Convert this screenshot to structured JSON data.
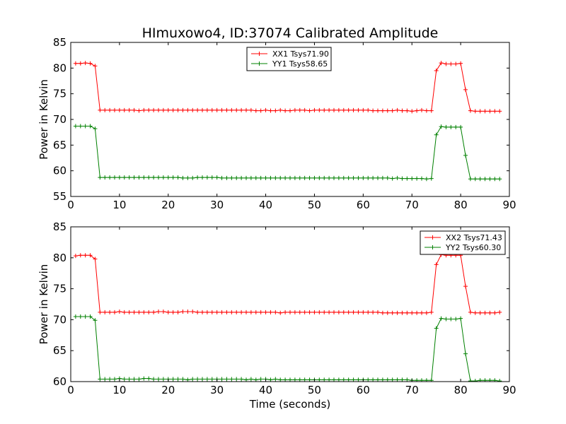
{
  "title": "HImuxowo4, ID:37074 Calibrated Amplitude",
  "chart_data": [
    {
      "type": "line",
      "xlabel": "",
      "ylabel": "Power in Kelvin",
      "xlim": [
        0,
        90
      ],
      "ylim": [
        55,
        85
      ],
      "xticks": [
        "0",
        "10",
        "20",
        "30",
        "40",
        "50",
        "60",
        "70",
        "80",
        "90"
      ],
      "yticks": [
        "55",
        "60",
        "65",
        "70",
        "75",
        "80",
        "85"
      ],
      "grid": false,
      "legend_position": "upper-center",
      "series": [
        {
          "name": "XX1 Tsys71.90",
          "color": "#ff0000",
          "x": [
            1,
            2,
            3,
            4,
            5,
            6,
            7,
            8,
            9,
            10,
            11,
            12,
            13,
            14,
            15,
            16,
            17,
            18,
            19,
            20,
            21,
            22,
            23,
            24,
            25,
            26,
            27,
            28,
            29,
            30,
            31,
            32,
            33,
            34,
            35,
            36,
            37,
            38,
            39,
            40,
            41,
            42,
            43,
            44,
            45,
            46,
            47,
            48,
            49,
            50,
            51,
            52,
            53,
            54,
            55,
            56,
            57,
            58,
            59,
            60,
            61,
            62,
            63,
            64,
            65,
            66,
            67,
            68,
            69,
            70,
            71,
            72,
            73,
            74,
            75,
            76,
            77,
            78,
            79,
            80,
            81,
            82,
            83,
            84,
            85,
            86,
            87,
            88
          ],
          "y": [
            80.9,
            80.9,
            81.0,
            80.9,
            80.4,
            71.8,
            71.8,
            71.8,
            71.8,
            71.8,
            71.8,
            71.8,
            71.8,
            71.7,
            71.8,
            71.8,
            71.8,
            71.8,
            71.8,
            71.8,
            71.8,
            71.8,
            71.8,
            71.8,
            71.8,
            71.8,
            71.8,
            71.8,
            71.8,
            71.8,
            71.8,
            71.8,
            71.8,
            71.8,
            71.8,
            71.8,
            71.8,
            71.7,
            71.7,
            71.8,
            71.7,
            71.7,
            71.8,
            71.7,
            71.7,
            71.8,
            71.8,
            71.8,
            71.7,
            71.8,
            71.8,
            71.8,
            71.8,
            71.8,
            71.8,
            71.8,
            71.8,
            71.8,
            71.8,
            71.8,
            71.8,
            71.7,
            71.7,
            71.7,
            71.7,
            71.7,
            71.8,
            71.7,
            71.7,
            71.6,
            71.7,
            71.8,
            71.7,
            71.7,
            79.5,
            81.0,
            80.8,
            80.8,
            80.8,
            80.9,
            75.8,
            71.7,
            71.6,
            71.6,
            71.6,
            71.6,
            71.6,
            71.6
          ]
        },
        {
          "name": "YY1 Tsys58.65",
          "color": "#008000",
          "x": [
            1,
            2,
            3,
            4,
            5,
            6,
            7,
            8,
            9,
            10,
            11,
            12,
            13,
            14,
            15,
            16,
            17,
            18,
            19,
            20,
            21,
            22,
            23,
            24,
            25,
            26,
            27,
            28,
            29,
            30,
            31,
            32,
            33,
            34,
            35,
            36,
            37,
            38,
            39,
            40,
            41,
            42,
            43,
            44,
            45,
            46,
            47,
            48,
            49,
            50,
            51,
            52,
            53,
            54,
            55,
            56,
            57,
            58,
            59,
            60,
            61,
            62,
            63,
            64,
            65,
            66,
            67,
            68,
            69,
            70,
            71,
            72,
            73,
            74,
            75,
            76,
            77,
            78,
            79,
            80,
            81,
            82,
            83,
            84,
            85,
            86,
            87,
            88
          ],
          "y": [
            68.7,
            68.7,
            68.7,
            68.7,
            68.2,
            58.7,
            58.7,
            58.7,
            58.7,
            58.7,
            58.7,
            58.7,
            58.7,
            58.7,
            58.7,
            58.7,
            58.7,
            58.7,
            58.7,
            58.7,
            58.7,
            58.7,
            58.6,
            58.6,
            58.6,
            58.7,
            58.7,
            58.7,
            58.7,
            58.7,
            58.6,
            58.6,
            58.6,
            58.6,
            58.6,
            58.6,
            58.6,
            58.6,
            58.6,
            58.6,
            58.6,
            58.6,
            58.6,
            58.6,
            58.6,
            58.6,
            58.6,
            58.6,
            58.6,
            58.6,
            58.6,
            58.6,
            58.6,
            58.6,
            58.6,
            58.6,
            58.6,
            58.6,
            58.6,
            58.6,
            58.6,
            58.6,
            58.6,
            58.6,
            58.6,
            58.5,
            58.6,
            58.5,
            58.5,
            58.5,
            58.5,
            58.5,
            58.4,
            58.5,
            67.0,
            68.6,
            68.5,
            68.5,
            68.5,
            68.5,
            63.0,
            58.4,
            58.4,
            58.4,
            58.4,
            58.4,
            58.4,
            58.4
          ]
        }
      ]
    },
    {
      "type": "line",
      "xlabel": "Time (seconds)",
      "ylabel": "Power in Kelvin",
      "xlim": [
        0,
        90
      ],
      "ylim": [
        60,
        85
      ],
      "xticks": [
        "0",
        "10",
        "20",
        "30",
        "40",
        "50",
        "60",
        "70",
        "80",
        "90"
      ],
      "yticks": [
        "60",
        "65",
        "70",
        "75",
        "80",
        "85"
      ],
      "grid": false,
      "legend_position": "upper-right",
      "series": [
        {
          "name": "XX2 Tsys71.43",
          "color": "#ff0000",
          "x": [
            1,
            2,
            3,
            4,
            5,
            6,
            7,
            8,
            9,
            10,
            11,
            12,
            13,
            14,
            15,
            16,
            17,
            18,
            19,
            20,
            21,
            22,
            23,
            24,
            25,
            26,
            27,
            28,
            29,
            30,
            31,
            32,
            33,
            34,
            35,
            36,
            37,
            38,
            39,
            40,
            41,
            42,
            43,
            44,
            45,
            46,
            47,
            48,
            49,
            50,
            51,
            52,
            53,
            54,
            55,
            56,
            57,
            58,
            59,
            60,
            61,
            62,
            63,
            64,
            65,
            66,
            67,
            68,
            69,
            70,
            71,
            72,
            73,
            74,
            75,
            76,
            77,
            78,
            79,
            80,
            81,
            82,
            83,
            84,
            85,
            86,
            87,
            88
          ],
          "y": [
            80.3,
            80.4,
            80.4,
            80.4,
            79.8,
            71.2,
            71.2,
            71.2,
            71.2,
            71.3,
            71.2,
            71.2,
            71.2,
            71.2,
            71.2,
            71.2,
            71.2,
            71.3,
            71.3,
            71.2,
            71.2,
            71.2,
            71.3,
            71.3,
            71.3,
            71.2,
            71.2,
            71.2,
            71.2,
            71.2,
            71.2,
            71.2,
            71.2,
            71.2,
            71.2,
            71.2,
            71.2,
            71.2,
            71.2,
            71.2,
            71.2,
            71.2,
            71.1,
            71.2,
            71.2,
            71.2,
            71.2,
            71.2,
            71.2,
            71.2,
            71.2,
            71.2,
            71.2,
            71.2,
            71.2,
            71.2,
            71.2,
            71.2,
            71.2,
            71.2,
            71.2,
            71.2,
            71.2,
            71.1,
            71.1,
            71.1,
            71.1,
            71.1,
            71.1,
            71.1,
            71.1,
            71.1,
            71.1,
            71.2,
            78.9,
            80.5,
            80.4,
            80.4,
            80.4,
            80.4,
            75.4,
            71.2,
            71.1,
            71.1,
            71.1,
            71.1,
            71.1,
            71.2
          ]
        },
        {
          "name": "YY2 Tsys60.30",
          "color": "#008000",
          "x": [
            1,
            2,
            3,
            4,
            5,
            6,
            7,
            8,
            9,
            10,
            11,
            12,
            13,
            14,
            15,
            16,
            17,
            18,
            19,
            20,
            21,
            22,
            23,
            24,
            25,
            26,
            27,
            28,
            29,
            30,
            31,
            32,
            33,
            34,
            35,
            36,
            37,
            38,
            39,
            40,
            41,
            42,
            43,
            44,
            45,
            46,
            47,
            48,
            49,
            50,
            51,
            52,
            53,
            54,
            55,
            56,
            57,
            58,
            59,
            60,
            61,
            62,
            63,
            64,
            65,
            66,
            67,
            68,
            69,
            70,
            71,
            72,
            73,
            74,
            75,
            76,
            77,
            78,
            79,
            80,
            81,
            82,
            83,
            84,
            85,
            86,
            87,
            88
          ],
          "y": [
            70.5,
            70.5,
            70.5,
            70.5,
            69.9,
            60.4,
            60.4,
            60.4,
            60.4,
            60.5,
            60.4,
            60.4,
            60.4,
            60.4,
            60.5,
            60.5,
            60.4,
            60.4,
            60.4,
            60.4,
            60.4,
            60.4,
            60.4,
            60.3,
            60.4,
            60.4,
            60.4,
            60.4,
            60.4,
            60.4,
            60.4,
            60.4,
            60.4,
            60.4,
            60.4,
            60.3,
            60.4,
            60.3,
            60.4,
            60.4,
            60.3,
            60.4,
            60.3,
            60.3,
            60.3,
            60.3,
            60.3,
            60.3,
            60.3,
            60.3,
            60.3,
            60.3,
            60.3,
            60.3,
            60.3,
            60.3,
            60.3,
            60.3,
            60.3,
            60.3,
            60.3,
            60.3,
            60.3,
            60.3,
            60.3,
            60.3,
            60.3,
            60.3,
            60.3,
            60.2,
            60.2,
            60.2,
            60.2,
            60.2,
            68.6,
            70.2,
            70.1,
            70.1,
            70.1,
            70.2,
            64.5,
            60.1,
            60.1,
            60.2,
            60.2,
            60.2,
            60.2,
            60.1
          ]
        }
      ]
    }
  ]
}
